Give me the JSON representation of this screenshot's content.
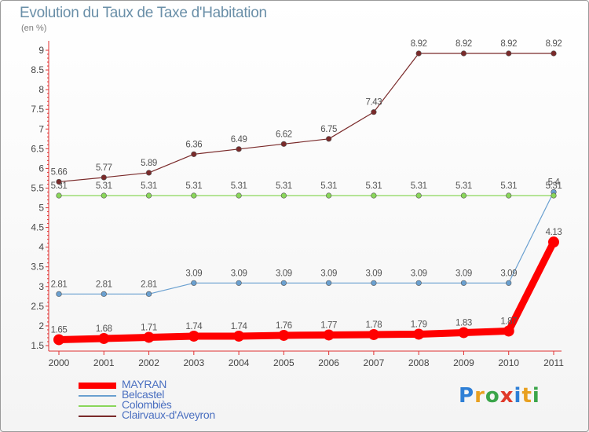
{
  "header": {
    "title": "Evolution du Taux de Taxe d'Habitation",
    "unit": "(en %)"
  },
  "logo": {
    "text": "Proxiti",
    "letter_colors": [
      "#2e7fd6",
      "#e8a020",
      "#3ba54a",
      "#e03a2a",
      "#2e7fd6",
      "#e8a020",
      "#3ba54a"
    ]
  },
  "chart_data": {
    "type": "line",
    "title": "Evolution du Taux de Taxe d'Habitation",
    "ylabel": "(en %)",
    "xlabel": "",
    "x": [
      "2000",
      "2001",
      "2002",
      "2003",
      "2004",
      "2005",
      "2006",
      "2007",
      "2008",
      "2009",
      "2010",
      "2011"
    ],
    "ylim": [
      1.5,
      9
    ],
    "yticks": [
      "1.5",
      "2",
      "2.5",
      "3",
      "3.5",
      "4",
      "4.5",
      "5",
      "5.5",
      "6",
      "6.5",
      "7",
      "7.5",
      "8",
      "8.5",
      "9"
    ],
    "grid": false,
    "legend": "bottom-left",
    "series": [
      {
        "name": "MAYRAN",
        "color": "#ff0000",
        "values": [
          1.65,
          1.68,
          1.71,
          1.74,
          1.74,
          1.76,
          1.77,
          1.78,
          1.79,
          1.83,
          1.87,
          4.13
        ],
        "labels": [
          "1.65",
          "1.68",
          "1.71",
          "1.74",
          "1.74",
          "1.76",
          "1.77",
          "1.78",
          "1.79",
          "1.83",
          "1.87",
          "4.13"
        ]
      },
      {
        "name": "Belcastel",
        "color": "#6aa0d0",
        "values": [
          2.81,
          2.81,
          2.81,
          3.09,
          3.09,
          3.09,
          3.09,
          3.09,
          3.09,
          3.09,
          3.09,
          5.4
        ],
        "labels": [
          "2.81",
          "2.81",
          "2.81",
          "3.09",
          "3.09",
          "3.09",
          "3.09",
          "3.09",
          "3.09",
          "3.09",
          "3.09",
          "5.4"
        ]
      },
      {
        "name": "Colombiès",
        "color": "#8ad65a",
        "values": [
          5.31,
          5.31,
          5.31,
          5.31,
          5.31,
          5.31,
          5.31,
          5.31,
          5.31,
          5.31,
          5.31,
          5.31
        ],
        "labels": [
          "5.31",
          "5.31",
          "5.31",
          "5.31",
          "5.31",
          "5.31",
          "5.31",
          "5.31",
          "5.31",
          "5.31",
          "5.31",
          "5.31"
        ]
      },
      {
        "name": "Clairvaux-d'Aveyron",
        "color": "#7a2a2a",
        "values": [
          5.66,
          5.77,
          5.89,
          6.36,
          6.49,
          6.62,
          6.75,
          7.43,
          8.92,
          8.92,
          8.92,
          8.92
        ],
        "labels": [
          "5.66",
          "5.77",
          "5.89",
          "6.36",
          "6.49",
          "6.62",
          "6.75",
          "7.43",
          "8.92",
          "8.92",
          "8.92",
          "8.92"
        ]
      }
    ]
  }
}
